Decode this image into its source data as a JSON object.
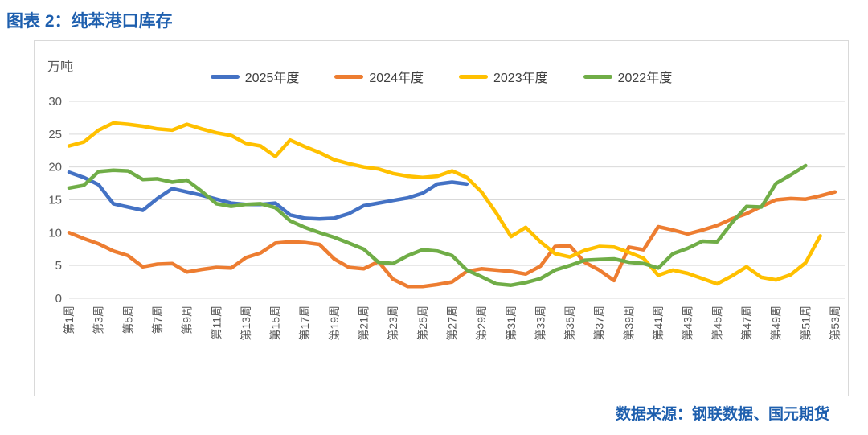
{
  "title": "图表 2：纯苯港口库存",
  "source": "数据来源：钢联数据、国元期货",
  "colors": {
    "title_blue": "#1E5FAE",
    "grid": "#D9D9D9",
    "axis_text": "#595959",
    "series_2025": "#4472C4",
    "series_2024": "#ED7D31",
    "series_2023": "#FFC000",
    "series_2022": "#70AD47"
  },
  "chart_data": {
    "type": "line",
    "title": "图表 2：纯苯港口库存",
    "ylabel": "万吨",
    "ylim": [
      0,
      30
    ],
    "yticks": [
      0,
      5,
      10,
      15,
      20,
      25,
      30
    ],
    "grid": true,
    "legend_position": "top",
    "x_weeks": 53,
    "x_tick_labels": [
      "第1周",
      "第3周",
      "第5周",
      "第7周",
      "第9周",
      "第11周",
      "第13周",
      "第15周",
      "第17周",
      "第19周",
      "第21周",
      "第23周",
      "第25周",
      "第27周",
      "第29周",
      "第31周",
      "第33周",
      "第35周",
      "第37周",
      "第39周",
      "第41周",
      "第43周",
      "第45周",
      "第47周",
      "第49周",
      "第51周",
      "第53周"
    ],
    "series": [
      {
        "name": "2025年度",
        "color": "#4472C4",
        "values": [
          19.2,
          18.4,
          17.3,
          14.4,
          13.9,
          13.4,
          15.2,
          16.7,
          16.2,
          15.7,
          15.1,
          14.5,
          14.3,
          14.3,
          14.5,
          12.7,
          12.2,
          12.1,
          12.2,
          12.9,
          14.1,
          14.5,
          14.9,
          15.3,
          16.0,
          17.4,
          17.7,
          17.4,
          null,
          null,
          null,
          null,
          null,
          null,
          null,
          null,
          null,
          null,
          null,
          null,
          null,
          null,
          null,
          null,
          null,
          null,
          null,
          null,
          null,
          null,
          null,
          null,
          null
        ]
      },
      {
        "name": "2024年度",
        "color": "#ED7D31",
        "values": [
          10.0,
          9.1,
          8.3,
          7.2,
          6.5,
          4.8,
          5.2,
          5.3,
          4.0,
          4.4,
          4.7,
          4.6,
          6.2,
          6.9,
          8.4,
          8.6,
          8.5,
          8.2,
          6.0,
          4.7,
          4.5,
          5.6,
          2.9,
          1.8,
          1.8,
          2.1,
          2.5,
          4.1,
          4.5,
          4.3,
          4.1,
          3.7,
          4.9,
          7.9,
          8.0,
          5.5,
          4.3,
          2.7,
          7.8,
          7.4,
          10.9,
          10.4,
          9.8,
          10.4,
          11.1,
          12.1,
          12.9,
          14.0,
          15.0,
          15.2,
          15.1,
          15.6,
          16.2
        ]
      },
      {
        "name": "2023年度",
        "color": "#FFC000",
        "values": [
          23.2,
          23.8,
          25.6,
          26.7,
          26.5,
          26.2,
          25.8,
          25.6,
          26.5,
          25.8,
          25.2,
          24.8,
          23.6,
          23.2,
          21.6,
          24.1,
          23.1,
          22.2,
          21.1,
          20.5,
          20.0,
          19.7,
          19.0,
          18.6,
          18.4,
          18.6,
          19.4,
          18.4,
          16.2,
          13.0,
          9.4,
          10.8,
          8.6,
          6.8,
          6.3,
          7.3,
          7.9,
          7.8,
          7.0,
          6.1,
          3.5,
          4.3,
          3.8,
          3.0,
          2.2,
          3.4,
          4.8,
          3.2,
          2.8,
          3.6,
          5.4,
          9.5,
          null
        ]
      },
      {
        "name": "2022年度",
        "color": "#70AD47",
        "values": [
          16.8,
          17.2,
          19.3,
          19.5,
          19.4,
          18.1,
          18.2,
          17.7,
          18.0,
          16.3,
          14.4,
          14.0,
          14.3,
          14.4,
          13.8,
          11.8,
          10.8,
          10.0,
          9.3,
          8.4,
          7.5,
          5.5,
          5.3,
          6.5,
          7.4,
          7.2,
          6.5,
          4.3,
          3.3,
          2.2,
          2.0,
          2.4,
          3.0,
          4.3,
          5.0,
          5.8,
          5.9,
          6.0,
          5.5,
          5.3,
          4.6,
          6.8,
          7.6,
          8.7,
          8.6,
          11.5,
          14.0,
          13.9,
          17.5,
          18.8,
          20.2,
          null,
          null
        ]
      }
    ]
  }
}
